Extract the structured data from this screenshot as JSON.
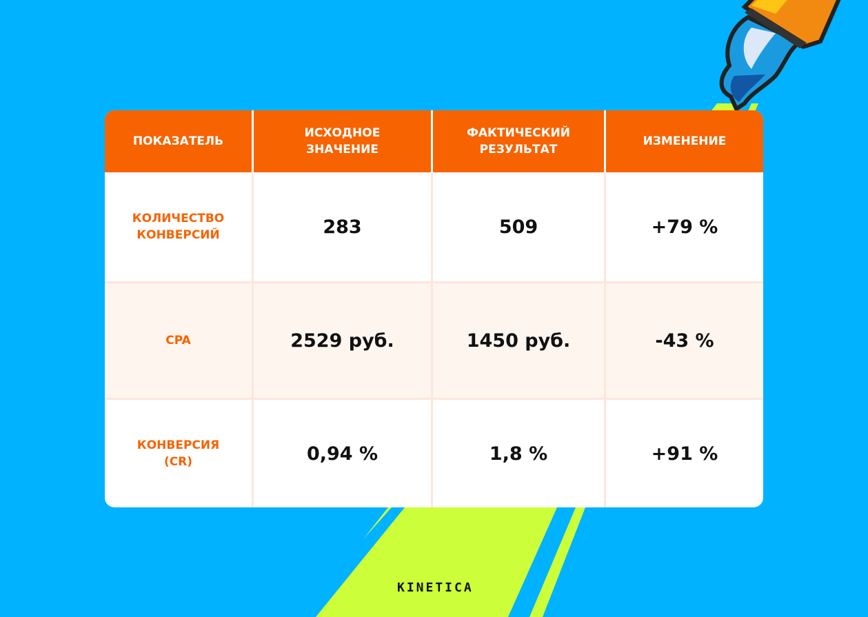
{
  "colors": {
    "background": "#00B2FF",
    "accent": "#F76300",
    "lime": "#CCFF3A",
    "alt_row": "#FEF5EF"
  },
  "table": {
    "headers": [
      "ПОКАЗАТЕЛЬ",
      "ИСХОДНОЕ ЗНАЧЕНИЕ",
      "ФАКТИЧЕСКИЙ РЕЗУЛЬТАТ",
      "ИЗМЕНЕНИЕ"
    ],
    "rows": [
      {
        "metric": "КОЛИЧЕСТВО КОНВЕРСИЙ",
        "initial": "283",
        "actual": "509",
        "change": "+79 %"
      },
      {
        "metric": "CPA",
        "initial": "2529 руб.",
        "actual": "1450 руб.",
        "change": "-43 %"
      },
      {
        "metric": "КОНВЕРСИЯ (CR)",
        "initial": "0,94 %",
        "actual": "1,8 %",
        "change": "+91 %"
      }
    ]
  },
  "brand": {
    "logo": "KINETICA"
  },
  "icons": {
    "decoration": "fountain-pen-icon"
  }
}
